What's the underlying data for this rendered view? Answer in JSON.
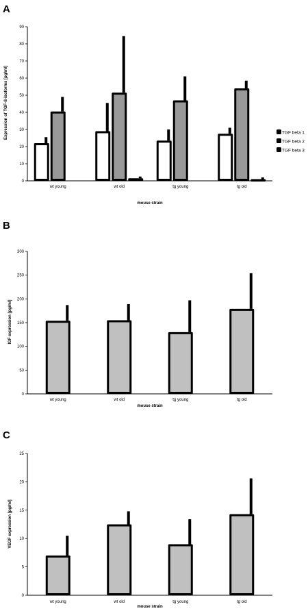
{
  "chart_data": [
    {
      "panel": "A",
      "type": "bar",
      "categories": [
        "wt young",
        "wt old",
        "tg young",
        "tg old"
      ],
      "series": [
        {
          "name": "TGF beta 1",
          "fill": "#ffffff",
          "values": [
            22,
            29,
            23.5,
            27.5
          ],
          "errors": [
            3.5,
            16.5,
            6.5,
            3.5
          ]
        },
        {
          "name": "TGF beta 2",
          "fill": "#999999",
          "values": [
            40.5,
            51.5,
            47,
            54
          ],
          "errors": [
            8.5,
            33,
            14,
            4.5
          ]
        },
        {
          "name": "TGF beta 3",
          "fill": "#000000",
          "values": [
            0,
            1.5,
            0,
            1
          ],
          "errors": [
            0,
            1,
            0,
            1
          ]
        }
      ],
      "xlabel": "mouse strain",
      "ylabel": "Expression of TGF-ß-isoforms [pg/ml]",
      "ylim": [
        0,
        90
      ],
      "yticks": [
        0,
        10,
        20,
        30,
        40,
        50,
        60,
        70,
        80,
        90
      ],
      "legend": "right"
    },
    {
      "panel": "B",
      "type": "bar",
      "categories": [
        "wt young",
        "wt old",
        "tg young",
        "tg old"
      ],
      "series": [
        {
          "fill": "#c0c0c0",
          "values": [
            154,
            155,
            130,
            179
          ],
          "errors": [
            33,
            34,
            67,
            75
          ]
        }
      ],
      "xlabel": "mouse strain",
      "ylabel": "IGF expression [pg/ml]",
      "ylim": [
        0,
        300
      ],
      "yticks": [
        0,
        50,
        100,
        150,
        200,
        250,
        300
      ]
    },
    {
      "panel": "C",
      "type": "bar",
      "categories": [
        "wt young",
        "wt old",
        "tg young",
        "tg old"
      ],
      "series": [
        {
          "fill": "#c0c0c0",
          "values": [
            7,
            12.5,
            9,
            14.3
          ],
          "errors": [
            3.5,
            2.3,
            4.4,
            6.3
          ]
        }
      ],
      "xlabel": "mouse strain",
      "ylabel": "VEGF expression [pg/ml]",
      "ylim": [
        0,
        25
      ],
      "yticks": [
        0,
        5,
        10,
        15,
        20,
        25
      ]
    }
  ]
}
